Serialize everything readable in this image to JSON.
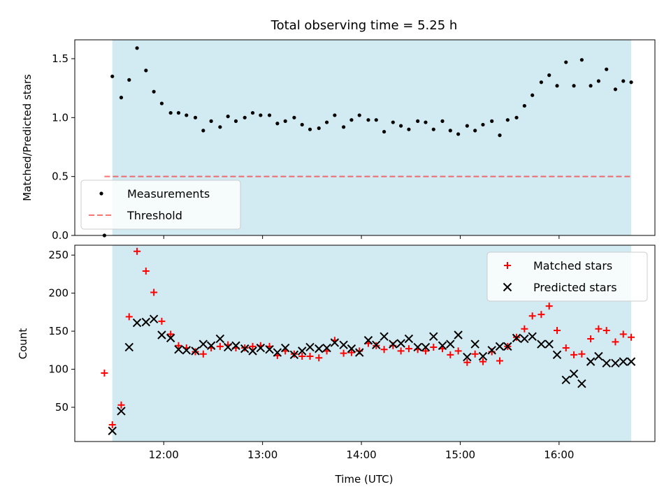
{
  "figure": {
    "title": "Total observing time = 5.25 h",
    "xlabel": "Time (UTC)",
    "x_tick_labels": [
      "12:00",
      "13:00",
      "14:00",
      "15:00",
      "16:00"
    ]
  },
  "colors": {
    "span": "#add8e6",
    "threshold": "#ff0000",
    "matched": "#ff0000",
    "predicted": "#000000",
    "measurements": "#000000"
  },
  "chart_data": [
    {
      "type": "scatter",
      "panel": "top",
      "ylabel": "Matched/Predicted stars",
      "x_unit": "hours UTC",
      "xlim": [
        11.1,
        16.97
      ],
      "ylim": [
        0.0,
        1.66
      ],
      "y_ticks": [
        0.0,
        0.5,
        1.0,
        1.5
      ],
      "y_tick_labels": [
        "0.0",
        "0.5",
        "1.0",
        "1.5"
      ],
      "shaded_span": [
        11.48,
        16.73
      ],
      "threshold": {
        "value": 0.5,
        "x_range": [
          11.4,
          16.73
        ]
      },
      "legend_position": "lower-left",
      "series": [
        {
          "name": "Measurements",
          "marker": "dot",
          "x": [
            11.4,
            11.48,
            11.57,
            11.65,
            11.73,
            11.82,
            11.9,
            11.98,
            12.07,
            12.15,
            12.23,
            12.32,
            12.4,
            12.48,
            12.57,
            12.65,
            12.73,
            12.82,
            12.9,
            12.98,
            13.07,
            13.15,
            13.23,
            13.32,
            13.4,
            13.48,
            13.57,
            13.65,
            13.73,
            13.82,
            13.9,
            13.98,
            14.07,
            14.15,
            14.23,
            14.32,
            14.4,
            14.48,
            14.57,
            14.65,
            14.73,
            14.82,
            14.9,
            14.98,
            15.07,
            15.15,
            15.23,
            15.32,
            15.4,
            15.48,
            15.57,
            15.65,
            15.73,
            15.82,
            15.9,
            15.98,
            16.07,
            16.15,
            16.23,
            16.32,
            16.4,
            16.48,
            16.57,
            16.65,
            16.73
          ],
          "y": [
            0.0,
            1.35,
            1.17,
            1.32,
            1.59,
            1.4,
            1.22,
            1.12,
            1.04,
            1.04,
            1.02,
            1.0,
            0.89,
            0.97,
            0.92,
            1.01,
            0.97,
            1.0,
            1.04,
            1.02,
            1.02,
            0.95,
            0.97,
            1.0,
            0.94,
            0.9,
            0.91,
            0.96,
            1.02,
            0.92,
            0.98,
            1.02,
            0.98,
            0.98,
            0.88,
            0.96,
            0.93,
            0.9,
            0.97,
            0.96,
            0.9,
            0.97,
            0.89,
            0.86,
            0.93,
            0.89,
            0.94,
            0.97,
            0.85,
            0.98,
            1.0,
            1.1,
            1.19,
            1.3,
            1.36,
            1.27,
            1.47,
            1.27,
            1.49,
            1.27,
            1.31,
            1.41,
            1.24,
            1.31,
            1.3
          ]
        }
      ]
    },
    {
      "type": "scatter",
      "panel": "bottom",
      "ylabel": "Count",
      "x_unit": "hours UTC",
      "xlim": [
        11.1,
        16.97
      ],
      "ylim": [
        5,
        263
      ],
      "y_ticks": [
        50,
        100,
        150,
        200,
        250
      ],
      "y_tick_labels": [
        "50",
        "100",
        "150",
        "200",
        "250"
      ],
      "shaded_span": [
        11.48,
        16.73
      ],
      "legend_position": "upper-right",
      "series": [
        {
          "name": "Matched stars",
          "marker": "plus",
          "x": [
            11.4,
            11.48,
            11.57,
            11.65,
            11.73,
            11.82,
            11.9,
            11.98,
            12.07,
            12.15,
            12.23,
            12.32,
            12.4,
            12.48,
            12.57,
            12.65,
            12.73,
            12.82,
            12.9,
            12.98,
            13.07,
            13.15,
            13.23,
            13.32,
            13.4,
            13.48,
            13.57,
            13.65,
            13.73,
            13.82,
            13.9,
            13.98,
            14.07,
            14.15,
            14.23,
            14.32,
            14.4,
            14.48,
            14.57,
            14.65,
            14.73,
            14.82,
            14.9,
            14.98,
            15.07,
            15.15,
            15.23,
            15.32,
            15.4,
            15.48,
            15.57,
            15.65,
            15.73,
            15.82,
            15.9,
            15.98,
            16.07,
            16.15,
            16.23,
            16.32,
            16.4,
            16.48,
            16.57,
            16.65,
            16.73
          ],
          "y": [
            95,
            27,
            53,
            169,
            255,
            229,
            201,
            163,
            146,
            131,
            128,
            123,
            120,
            128,
            130,
            132,
            128,
            128,
            130,
            131,
            130,
            118,
            124,
            120,
            117,
            117,
            115,
            124,
            138,
            121,
            122,
            124,
            134,
            131,
            126,
            131,
            124,
            127,
            126,
            124,
            129,
            127,
            119,
            124,
            109,
            120,
            110,
            123,
            111,
            130,
            142,
            153,
            170,
            172,
            183,
            151,
            128,
            119,
            120,
            140,
            153,
            151,
            136,
            146,
            142
          ]
        },
        {
          "name": "Predicted stars",
          "marker": "x",
          "x": [
            11.48,
            11.57,
            11.65,
            11.73,
            11.82,
            11.9,
            11.98,
            12.07,
            12.15,
            12.23,
            12.32,
            12.4,
            12.48,
            12.57,
            12.65,
            12.73,
            12.82,
            12.9,
            12.98,
            13.07,
            13.15,
            13.23,
            13.32,
            13.4,
            13.48,
            13.57,
            13.65,
            13.73,
            13.82,
            13.9,
            13.98,
            14.07,
            14.15,
            14.23,
            14.32,
            14.4,
            14.48,
            14.57,
            14.65,
            14.73,
            14.82,
            14.9,
            14.98,
            15.07,
            15.15,
            15.23,
            15.32,
            15.4,
            15.48,
            15.57,
            15.65,
            15.73,
            15.82,
            15.9,
            15.98,
            16.07,
            16.15,
            16.23,
            16.32,
            16.4,
            16.48,
            16.57,
            16.65,
            16.73
          ],
          "y": [
            19,
            45,
            129,
            161,
            162,
            166,
            145,
            141,
            126,
            125,
            124,
            133,
            131,
            140,
            129,
            131,
            127,
            124,
            128,
            126,
            122,
            128,
            119,
            124,
            129,
            127,
            128,
            135,
            132,
            127,
            122,
            138,
            132,
            143,
            133,
            134,
            140,
            129,
            129,
            143,
            131,
            133,
            145,
            116,
            133,
            117,
            125,
            130,
            130,
            141,
            140,
            143,
            133,
            133,
            119,
            86,
            94,
            81,
            110,
            117,
            108,
            108,
            110,
            110
          ]
        }
      ]
    }
  ]
}
